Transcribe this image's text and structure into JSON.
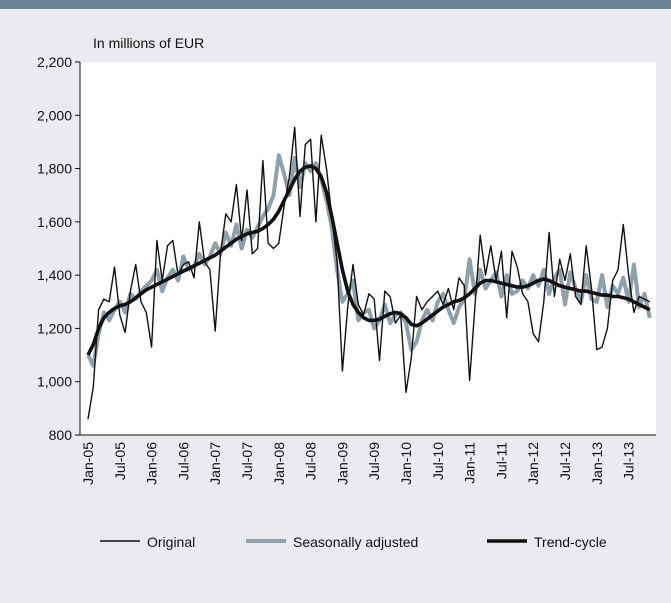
{
  "chart_data": {
    "type": "line",
    "subtitle": "In millions of EUR",
    "categories": [
      "Jan-05",
      null,
      null,
      null,
      null,
      null,
      "Jul-05",
      null,
      null,
      null,
      null,
      null,
      "Jan-06",
      null,
      null,
      null,
      null,
      null,
      "Jul-06",
      null,
      null,
      null,
      null,
      null,
      "Jan-07",
      null,
      null,
      null,
      null,
      null,
      "Jul-07",
      null,
      null,
      null,
      null,
      null,
      "Jan-08",
      null,
      null,
      null,
      null,
      null,
      "Jul-08",
      null,
      null,
      null,
      null,
      null,
      "Jan-09",
      null,
      null,
      null,
      null,
      null,
      "Jul-09",
      null,
      null,
      null,
      null,
      null,
      "Jan-10",
      null,
      null,
      null,
      null,
      null,
      "Jul-10",
      null,
      null,
      null,
      null,
      null,
      "Jan-11",
      null,
      null,
      null,
      null,
      null,
      "Jul-11",
      null,
      null,
      null,
      null,
      null,
      "Jan-12",
      null,
      null,
      null,
      null,
      null,
      "Jul-12",
      null,
      null,
      null,
      null,
      null,
      "Jan-13",
      null,
      null,
      null,
      null,
      null,
      "Jul-13",
      null,
      null,
      null,
      null
    ],
    "series": [
      {
        "name": "Original",
        "color": "#111111",
        "width": 1.4,
        "values": [
          860,
          980,
          1270,
          1310,
          1300,
          1430,
          1250,
          1185,
          1340,
          1440,
          1300,
          1260,
          1130,
          1530,
          1380,
          1510,
          1530,
          1400,
          1440,
          1450,
          1390,
          1600,
          1450,
          1420,
          1190,
          1480,
          1630,
          1600,
          1740,
          1530,
          1720,
          1480,
          1500,
          1830,
          1520,
          1500,
          1520,
          1660,
          1770,
          1955,
          1620,
          1890,
          1910,
          1600,
          1925,
          1800,
          1620,
          1450,
          1040,
          1280,
          1440,
          1290,
          1250,
          1330,
          1310,
          1080,
          1340,
          1320,
          1220,
          1250,
          960,
          1090,
          1320,
          1270,
          1300,
          1320,
          1340,
          1290,
          1350,
          1270,
          1390,
          1360,
          1005,
          1280,
          1550,
          1400,
          1510,
          1380,
          1490,
          1240,
          1490,
          1430,
          1330,
          1300,
          1180,
          1150,
          1300,
          1560,
          1320,
          1460,
          1380,
          1480,
          1320,
          1290,
          1510,
          1350,
          1120,
          1130,
          1200,
          1380,
          1420,
          1590,
          1400,
          1260,
          1320,
          1310,
          1300
        ]
      },
      {
        "name": "Seasonally adjusted",
        "color": "#8fa0aa",
        "width": 4,
        "values": [
          1100,
          1060,
          1180,
          1260,
          1230,
          1270,
          1300,
          1260,
          1330,
          1310,
          1340,
          1360,
          1380,
          1420,
          1340,
          1390,
          1420,
          1380,
          1470,
          1420,
          1430,
          1480,
          1440,
          1470,
          1520,
          1480,
          1560,
          1510,
          1590,
          1500,
          1570,
          1540,
          1580,
          1620,
          1650,
          1700,
          1850,
          1780,
          1700,
          1840,
          1730,
          1820,
          1790,
          1820,
          1760,
          1680,
          1580,
          1420,
          1300,
          1330,
          1380,
          1230,
          1260,
          1270,
          1200,
          1230,
          1290,
          1220,
          1250,
          1260,
          1220,
          1120,
          1150,
          1230,
          1270,
          1230,
          1300,
          1330,
          1270,
          1220,
          1280,
          1310,
          1460,
          1330,
          1420,
          1350,
          1380,
          1410,
          1320,
          1400,
          1330,
          1340,
          1380,
          1350,
          1400,
          1360,
          1420,
          1330,
          1390,
          1420,
          1290,
          1410,
          1350,
          1300,
          1400,
          1310,
          1300,
          1400,
          1280,
          1360,
          1330,
          1390,
          1300,
          1440,
          1280,
          1330,
          1240
        ]
      },
      {
        "name": "Trend-cycle",
        "color": "#111111",
        "width": 3.6,
        "values": [
          1100,
          1140,
          1200,
          1240,
          1260,
          1275,
          1285,
          1290,
          1300,
          1315,
          1330,
          1345,
          1355,
          1365,
          1375,
          1385,
          1395,
          1405,
          1415,
          1425,
          1435,
          1445,
          1455,
          1465,
          1475,
          1490,
          1505,
          1520,
          1535,
          1545,
          1555,
          1560,
          1565,
          1575,
          1590,
          1610,
          1640,
          1680,
          1720,
          1760,
          1790,
          1805,
          1810,
          1800,
          1770,
          1710,
          1620,
          1520,
          1420,
          1340,
          1290,
          1260,
          1240,
          1230,
          1230,
          1235,
          1245,
          1255,
          1260,
          1255,
          1240,
          1215,
          1210,
          1220,
          1235,
          1250,
          1265,
          1280,
          1290,
          1300,
          1305,
          1315,
          1330,
          1350,
          1370,
          1380,
          1380,
          1375,
          1370,
          1365,
          1360,
          1355,
          1355,
          1360,
          1370,
          1380,
          1385,
          1380,
          1370,
          1360,
          1355,
          1350,
          1345,
          1340,
          1340,
          1335,
          1330,
          1325,
          1325,
          1320,
          1320,
          1315,
          1310,
          1300,
          1290,
          1280,
          1270
        ]
      }
    ],
    "ylim": [
      800,
      2200
    ],
    "yticks": [
      800,
      {
        "value": 1000,
        "label": "1,000"
      },
      {
        "value": 1200,
        "label": "1,200"
      },
      {
        "value": 1400,
        "label": "1,400"
      },
      {
        "value": 1600,
        "label": "1,600"
      },
      {
        "value": 1800,
        "label": "1,800"
      },
      {
        "value": 2000,
        "label": "2,000"
      },
      {
        "value": 2200,
        "label": "2,200"
      }
    ],
    "legend": "bottom"
  }
}
